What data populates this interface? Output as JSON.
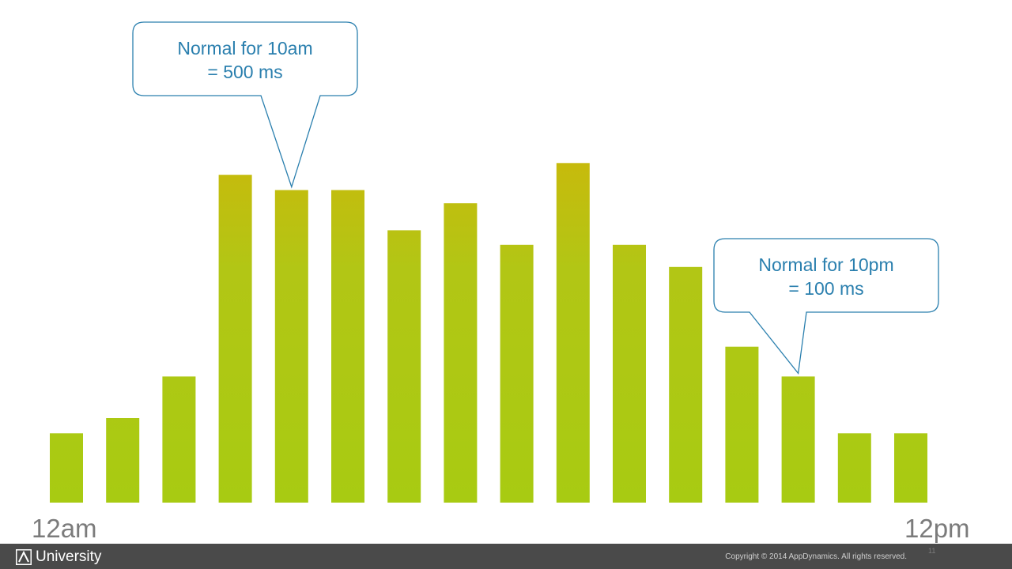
{
  "chart_data": {
    "type": "bar",
    "title": "",
    "xlabel": "",
    "ylabel": "",
    "x_start_label": "12am",
    "x_end_label": "12pm",
    "values": [
      100,
      122,
      182,
      473,
      451,
      451,
      393,
      432,
      372,
      490,
      372,
      340,
      225,
      182,
      100,
      100
    ],
    "ylim": [
      0,
      520
    ],
    "grid": false,
    "legend": "none",
    "bar_color_top": "#cbb80a",
    "bar_color_bottom": "#a8cb12",
    "annotations": [
      {
        "line1": "Normal for 10am",
        "line2": "= 500 ms",
        "target_bar": 4
      },
      {
        "line1": "Normal for 10pm",
        "line2": "= 100 ms",
        "target_bar": 13
      }
    ]
  },
  "footer": {
    "brand": "University",
    "brand_icon": "appdynamics-a-icon",
    "copyright": "Copyright © 2014 AppDynamics. All rights reserved.",
    "page_number": "11"
  },
  "colors": {
    "callout_border": "#2a7fae",
    "callout_text": "#2a7fae",
    "axis_label": "#7b7b7b",
    "footer_bg": "#4a4a4a"
  }
}
